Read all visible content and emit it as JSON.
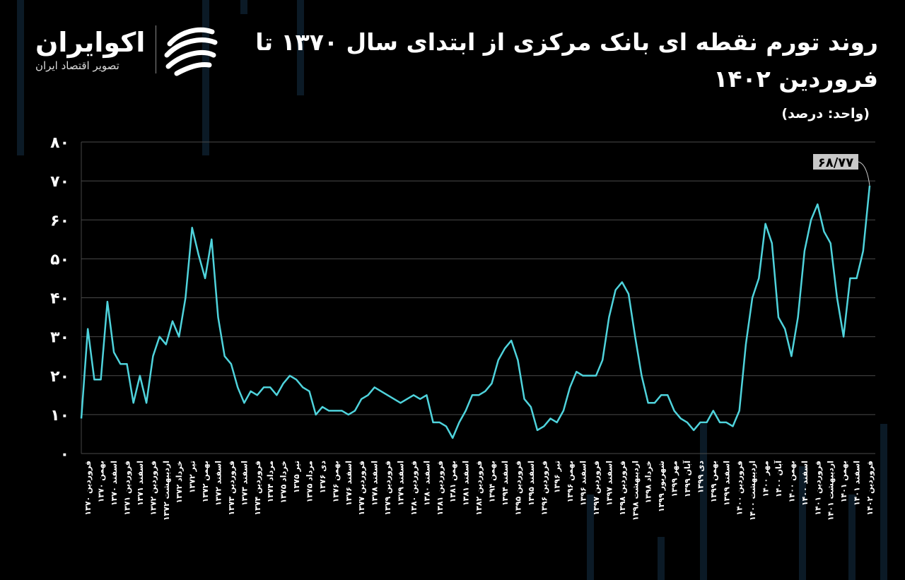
{
  "logo": {
    "name": "اکوایران",
    "tagline": "تصویر اقتصاد ایران"
  },
  "chart_data": {
    "type": "line",
    "title": "روند تورم نقطه ای بانک مرکزی از ابتدای سال ۱۳۷۰ تا فروردین ۱۴۰۲",
    "unit": "(واحد: درصد)",
    "annotation": "۶۸/۷۷",
    "categories": [
      null,
      "فروردین ۱۳۷۰",
      null,
      "بهمن ۱۳۷۰",
      null,
      "اسفند ۱۳۷۰",
      null,
      "فروردین ۱۳۷۱",
      null,
      "اسفند ۱۳۷۱",
      null,
      "فروردین ۱۳۷۲",
      null,
      "اردیبهشت ۱۳۷۲",
      null,
      "خرداد ۱۳۷۲",
      null,
      "تیر ۱۳۷۲",
      null,
      "بهمن ۱۳۷۲",
      null,
      "اسفند ۱۳۷۲",
      null,
      "فروردین ۱۳۷۳",
      null,
      "اسفند ۱۳۷۳",
      null,
      "فروردین ۱۳۷۴",
      null,
      "مرداد ۱۳۷۴",
      null,
      "خرداد ۱۳۷۵",
      null,
      "تیر ۱۳۷۵",
      null,
      "مرداد ۱۳۷۵",
      null,
      "دی ۱۳۷۶",
      null,
      "بهمن ۱۳۷۶",
      null,
      "اسفند ۱۳۷۶",
      null,
      "فروردین ۱۳۷۷",
      null,
      "اسفند ۱۳۷۸",
      null,
      "فروردین ۱۳۷۹",
      null,
      "اسفند ۱۳۷۹",
      null,
      "فروردین ۱۳۸۰",
      null,
      "اسفند ۱۳۸۰",
      null,
      "فروردین ۱۳۸۱",
      null,
      "بهمن ۱۳۸۱",
      null,
      "اسفند ۱۳۸۱",
      null,
      "فروردین ۱۳۸۲",
      null,
      "بهمن ۱۳۹۴",
      null,
      "اسفند ۱۳۹۴",
      null,
      "فروردین ۱۳۹۵",
      null,
      "اسفند ۱۳۹۵",
      null,
      "فروردین ۱۳۹۶",
      null,
      "تیر ۱۳۹۶",
      null,
      "بهمن ۱۳۹۶",
      null,
      "اسفند ۱۳۹۶",
      null,
      "فروردین ۱۳۹۷",
      null,
      "اسفند ۱۳۹۷",
      null,
      "فروردین ۱۳۹۸",
      null,
      "اردیبهشت ۱۳۹۸",
      null,
      "خرداد ۱۳۹۸",
      null,
      "شهریور ۱۳۹۹",
      null,
      "مهر ۱۳۹۹",
      null,
      "آبان ۱۳۹۹",
      null,
      "دی ۱۳۹۹",
      null,
      "بهمن ۱۳۹۹",
      null,
      "اسفند ۱۳۹۹",
      null,
      "فروردین ۱۴۰۰",
      null,
      "اردیبهشت ۱۴۰۰",
      null,
      "مهر ۱۴۰۰",
      null,
      "آبان ۱۴۰۰",
      null,
      "بهمن ۱۴۰۰",
      null,
      "اسفند ۱۴۰۰",
      null,
      "فروردین ۱۴۰۱",
      null,
      "اردیبهشت ۱۴۰۱",
      null,
      "بهمن ۱۴۰۱",
      null,
      "اسفند ۱۴۰۱",
      null,
      "فروردین ۱۴۰۲"
    ],
    "series": [
      {
        "name": "تورم نقطه ای",
        "color": "#4fd3dc",
        "values": [
          9,
          32,
          19,
          19,
          39,
          26,
          23,
          23,
          13,
          20,
          13,
          25,
          30,
          28,
          34,
          30,
          40,
          58,
          51,
          45,
          55,
          35,
          25,
          23,
          17,
          13,
          16,
          15,
          17,
          17,
          15,
          18,
          20,
          19,
          17,
          16,
          10,
          12,
          11,
          11,
          11,
          10,
          11,
          14,
          15,
          17,
          16,
          15,
          14,
          13,
          14,
          15,
          14,
          15,
          8,
          8,
          7,
          4,
          8,
          11,
          15,
          15,
          16,
          18,
          24,
          27,
          29,
          24,
          14,
          12,
          6,
          7,
          9,
          8,
          11,
          17,
          21,
          20,
          20,
          20,
          24,
          35,
          42,
          44,
          41,
          30,
          20,
          13,
          13,
          15,
          15,
          11,
          9,
          8,
          6,
          8,
          8,
          11,
          8,
          8,
          7,
          11,
          28,
          40,
          45,
          59,
          54,
          35,
          32,
          25,
          35,
          52,
          60,
          64,
          57,
          54,
          40,
          30,
          45,
          45,
          52,
          68.77
        ]
      }
    ],
    "ylim": [
      0,
      80
    ],
    "yticks": [
      {
        "value": 0,
        "label": "۰"
      },
      {
        "value": 10,
        "label": "۱۰"
      },
      {
        "value": 20,
        "label": "۲۰"
      },
      {
        "value": 30,
        "label": "۳۰"
      },
      {
        "value": 40,
        "label": "۴۰"
      },
      {
        "value": 50,
        "label": "۵۰"
      },
      {
        "value": 60,
        "label": "۶۰"
      },
      {
        "value": 70,
        "label": "۷۰"
      },
      {
        "value": 80,
        "label": "۸۰"
      }
    ],
    "grid": true
  }
}
